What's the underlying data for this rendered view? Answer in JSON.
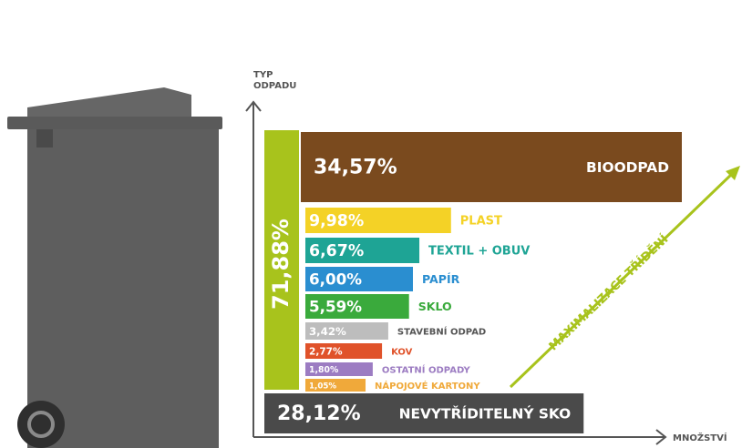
{
  "chart_data": {
    "type": "bar",
    "orientation": "horizontal",
    "y_label": [
      "TYP",
      "ODPADU"
    ],
    "x_label": "MNOŽSTVÍ",
    "annotation": "MAXIMALIZACE TŘÍDĚNÍ",
    "total": {
      "value": 71.88,
      "label": "71,88%",
      "color": "#a8c31c"
    },
    "categories": [
      "BIOODPAD",
      "PLAST",
      "TEXTIL + OBUV",
      "PAPÍR",
      "SKLO",
      "STAVEBNÍ ODPAD",
      "KOV",
      "OSTATNÍ ODPADY",
      "NÁPOJOVÉ KARTONY",
      "NEVYTŘÍDITELNÝ SKO"
    ],
    "values": [
      34.57,
      9.98,
      6.67,
      6.0,
      5.59,
      3.42,
      2.77,
      1.8,
      1.05,
      28.12
    ],
    "value_labels": [
      "34,57%",
      "9,98%",
      "6,67%",
      "6,00%",
      "5,59%",
      "3,42%",
      "2,77%",
      "1,80%",
      "1,05%",
      "28,12%"
    ],
    "colors": [
      "#7a4a1e",
      "#f4d226",
      "#1ea495",
      "#2a8ed0",
      "#3aaa3c",
      "#bdbdbd",
      "#e0522a",
      "#9c7cc2",
      "#f0a93a",
      "#4a4a4a"
    ]
  }
}
